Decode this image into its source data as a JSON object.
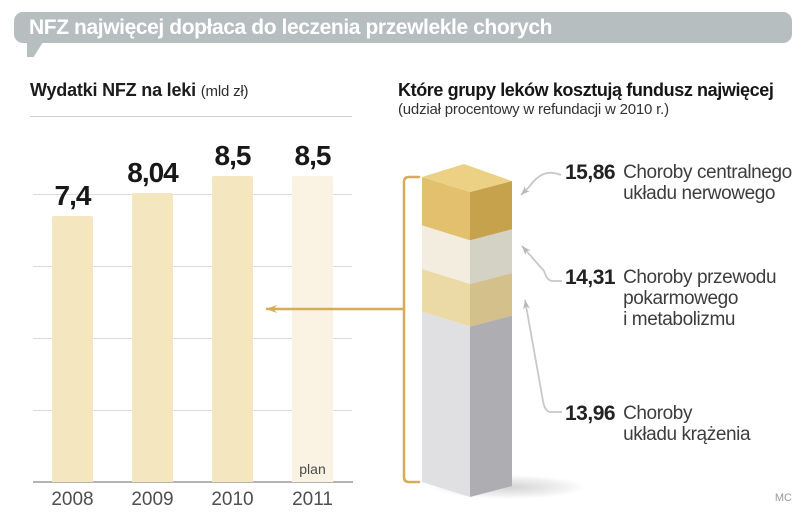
{
  "header": {
    "title": "NFZ najwięcej dopłaca do leczenia przewlekle chorych"
  },
  "left_panel": {
    "title": "Wydatki NFZ na leki",
    "unit": "(mld zł)"
  },
  "right_panel": {
    "title": "Które grupy leków kosztują fundusz najwięcej",
    "subtitle": "(udział procentowy w refundacji w 2010 r.)"
  },
  "credit": "MC",
  "colors": {
    "header_bg": "#b7bec0",
    "bar": "#f4e6bf",
    "bar_plan": "#faf3e3",
    "accent_gold": "#d4ad56",
    "leader_gray": "#c8c8c8",
    "leader_head": "#b9b9b9",
    "gridline": "#dcdcdc",
    "axis": "#b4b4b4",
    "segments": [
      {
        "front": "#e3c06d",
        "side": "#c7a24d",
        "top": "#ecd185"
      },
      {
        "front": "#f2edde",
        "side": "#d4d1c5"
      },
      {
        "front": "#ecdaa6",
        "side": "#d3c08b"
      },
      {
        "front": "#e0e0e3",
        "side": "#adadb2"
      }
    ]
  },
  "chart_data": [
    {
      "type": "bar",
      "title": "Wydatki NFZ na leki (mld zł)",
      "categories": [
        "2008",
        "2009",
        "2010",
        "2011"
      ],
      "values": [
        7.4,
        8.04,
        8.5,
        8.5
      ],
      "value_labels": [
        "7,4",
        "8,04",
        "8,5",
        "8,5"
      ],
      "note_on_last": "plan",
      "ylabel": "mld zł",
      "ylim": [
        0,
        9
      ],
      "gridline_values": [
        2,
        4,
        6,
        8
      ],
      "grid": true,
      "legend": false
    },
    {
      "type": "bar",
      "variant": "stacked-3d-column",
      "title": "Które grupy leków kosztują fundusz najwięcej",
      "subtitle": "(udział procentowy w refundacji w 2010 r.)",
      "unit": "% udziału w refundacji w 2010 r.",
      "segments": [
        {
          "value": 15.86,
          "value_label": "15,86",
          "label": "Choroby centralnego\nukładu nerwowego"
        },
        {
          "value": 14.31,
          "value_label": "14,31",
          "label": "Choroby przewodu\npokarmowego\ni metabolizmu"
        },
        {
          "value": 13.96,
          "value_label": "13,96",
          "label": "Choroby\nukładu krążenia"
        }
      ],
      "remainder_is_unlabeled": true,
      "highlight_links_to": "2010"
    }
  ]
}
